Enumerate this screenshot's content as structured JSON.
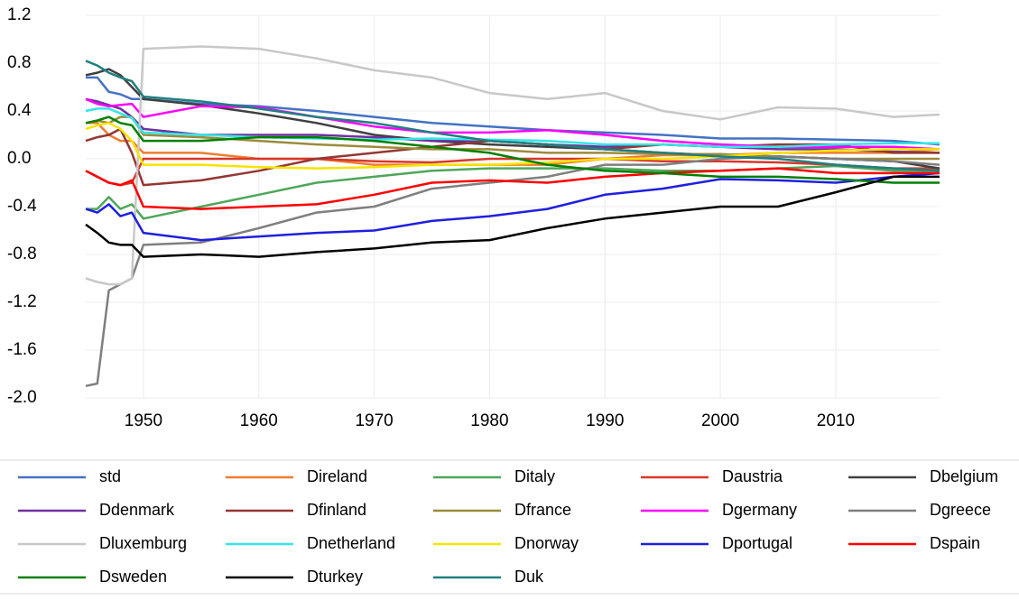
{
  "chart_data": {
    "type": "line",
    "x": [
      1945,
      1946,
      1947,
      1948,
      1949,
      1950,
      1955,
      1960,
      1965,
      1970,
      1975,
      1980,
      1985,
      1990,
      1995,
      2000,
      2005,
      2010,
      2015,
      2019
    ],
    "xlim": [
      1945,
      2019
    ],
    "xticks": [
      1950,
      1960,
      1970,
      1980,
      1990,
      2000,
      2010
    ],
    "ylim": [
      -2,
      1.2
    ],
    "yticks": [
      1.2,
      0.8,
      0.4,
      {
        "value": 0,
        "label": "0.0"
      },
      -0.4,
      -0.8,
      -1.2,
      -1.6,
      {
        "value": -2,
        "label": "-2.0"
      }
    ],
    "grid": true,
    "legend": "bottom",
    "series": [
      {
        "name": "std",
        "color": "#4472c4",
        "values": [
          0.68,
          0.68,
          0.56,
          0.54,
          0.5,
          0.5,
          0.46,
          0.44,
          0.4,
          0.35,
          0.3,
          0.27,
          0.24,
          0.22,
          0.2,
          0.17,
          0.17,
          0.16,
          0.15,
          0.12
        ]
      },
      {
        "name": "Direland",
        "color": "#ed7d31",
        "values": [
          0.3,
          0.3,
          0.2,
          0.15,
          0.15,
          0.05,
          0.05,
          0.0,
          0.0,
          -0.05,
          -0.05,
          -0.05,
          -0.05,
          0.0,
          0.03,
          0.03,
          0.05,
          0.05,
          0.05,
          0.08
        ]
      },
      {
        "name": "Ditaly",
        "color": "#4ea65a",
        "values": [
          -0.42,
          -0.42,
          -0.32,
          -0.42,
          -0.38,
          -0.5,
          -0.4,
          -0.3,
          -0.2,
          -0.15,
          -0.1,
          -0.08,
          -0.08,
          -0.08,
          -0.1,
          -0.1,
          -0.08,
          -0.06,
          -0.1,
          -0.1
        ]
      },
      {
        "name": "Daustria",
        "color": "#d9372b",
        "values": [
          -0.1,
          -0.15,
          -0.2,
          -0.22,
          -0.2,
          0.0,
          0.0,
          0.0,
          0.0,
          -0.02,
          -0.03,
          0.0,
          0.0,
          0.0,
          -0.02,
          -0.02,
          -0.03,
          -0.05,
          -0.08,
          -0.08
        ]
      },
      {
        "name": "Dbelgium",
        "color": "#404040",
        "values": [
          0.7,
          0.72,
          0.75,
          0.7,
          0.6,
          0.5,
          0.45,
          0.38,
          0.3,
          0.2,
          0.15,
          0.12,
          0.1,
          0.08,
          0.05,
          0.03,
          0.02,
          0.0,
          -0.02,
          -0.08
        ]
      },
      {
        "name": "Ddenmark",
        "color": "#7030a0",
        "values": [
          0.5,
          0.48,
          0.45,
          0.42,
          0.35,
          0.25,
          0.2,
          0.2,
          0.2,
          0.18,
          0.15,
          0.15,
          0.12,
          0.1,
          0.12,
          0.1,
          0.08,
          0.08,
          0.06,
          0.05
        ]
      },
      {
        "name": "Dfinland",
        "color": "#943634",
        "values": [
          0.15,
          0.18,
          0.2,
          0.25,
          0.05,
          -0.22,
          -0.18,
          -0.1,
          0.0,
          0.05,
          0.1,
          0.15,
          0.12,
          0.08,
          0.12,
          0.1,
          0.12,
          0.12,
          0.05,
          0.05
        ]
      },
      {
        "name": "Dfrance",
        "color": "#9c8a3b",
        "values": [
          0.3,
          0.32,
          0.3,
          0.35,
          0.35,
          0.2,
          0.18,
          0.15,
          0.12,
          0.1,
          0.08,
          0.08,
          0.05,
          0.05,
          0.04,
          0.04,
          0.02,
          0.0,
          0.0,
          0.0
        ]
      },
      {
        "name": "Dgermany",
        "color": "#ff00ff",
        "values": [
          0.5,
          0.46,
          0.44,
          0.45,
          0.46,
          0.35,
          0.44,
          0.43,
          0.35,
          0.27,
          0.22,
          0.22,
          0.24,
          0.2,
          0.15,
          0.12,
          0.1,
          0.1,
          0.1,
          0.08
        ]
      },
      {
        "name": "Dgreece",
        "color": "#7f7f7f",
        "values": [
          -1.9,
          -1.88,
          -1.1,
          -1.05,
          -1.0,
          -0.72,
          -0.7,
          -0.58,
          -0.45,
          -0.4,
          -0.25,
          -0.2,
          -0.15,
          -0.05,
          -0.05,
          0.0,
          0.02,
          0.0,
          -0.02,
          -0.05
        ]
      },
      {
        "name": "Dluxemburg",
        "color": "#c8c8c8",
        "values": [
          -1.0,
          -1.03,
          -1.05,
          -1.05,
          -1.0,
          0.92,
          0.94,
          0.92,
          0.84,
          0.74,
          0.68,
          0.55,
          0.5,
          0.55,
          0.4,
          0.33,
          0.43,
          0.42,
          0.35,
          0.37
        ]
      },
      {
        "name": "Dnetherland",
        "color": "#33e6e6",
        "values": [
          0.4,
          0.42,
          0.42,
          0.38,
          0.34,
          0.22,
          0.2,
          0.18,
          0.17,
          0.16,
          0.17,
          0.16,
          0.15,
          0.12,
          0.12,
          0.1,
          0.1,
          0.12,
          0.13,
          0.13
        ]
      },
      {
        "name": "Dnorway",
        "color": "#f5e400",
        "values": [
          0.25,
          0.28,
          0.3,
          0.25,
          0.15,
          -0.05,
          -0.05,
          -0.07,
          -0.08,
          -0.07,
          -0.05,
          -0.05,
          -0.03,
          0.0,
          0.0,
          0.02,
          0.05,
          0.07,
          0.08,
          0.08
        ]
      },
      {
        "name": "Dportugal",
        "color": "#1f1fe0",
        "values": [
          -0.42,
          -0.45,
          -0.38,
          -0.48,
          -0.45,
          -0.62,
          -0.68,
          -0.65,
          -0.62,
          -0.6,
          -0.52,
          -0.48,
          -0.42,
          -0.3,
          -0.25,
          -0.17,
          -0.18,
          -0.2,
          -0.15,
          -0.12
        ]
      },
      {
        "name": "Dspain",
        "color": "#ff0000",
        "values": [
          -0.1,
          -0.15,
          -0.2,
          -0.22,
          -0.18,
          -0.4,
          -0.42,
          -0.4,
          -0.38,
          -0.3,
          -0.2,
          -0.18,
          -0.2,
          -0.15,
          -0.12,
          -0.1,
          -0.08,
          -0.12,
          -0.12,
          -0.12
        ]
      },
      {
        "name": "Dsweden",
        "color": "#008000",
        "values": [
          0.3,
          0.32,
          0.35,
          0.3,
          0.28,
          0.15,
          0.15,
          0.18,
          0.18,
          0.15,
          0.1,
          0.05,
          -0.05,
          -0.1,
          -0.12,
          -0.15,
          -0.15,
          -0.17,
          -0.2,
          -0.2
        ]
      },
      {
        "name": "Dturkey",
        "color": "#000000",
        "values": [
          -0.55,
          -0.62,
          -0.7,
          -0.72,
          -0.72,
          -0.82,
          -0.8,
          -0.82,
          -0.78,
          -0.75,
          -0.7,
          -0.68,
          -0.58,
          -0.5,
          -0.45,
          -0.4,
          -0.4,
          -0.28,
          -0.15,
          -0.15
        ]
      },
      {
        "name": "Duk",
        "color": "#1f7f7f",
        "values": [
          0.82,
          0.78,
          0.72,
          0.68,
          0.65,
          0.52,
          0.48,
          0.42,
          0.35,
          0.3,
          0.22,
          0.15,
          0.12,
          0.08,
          0.05,
          0.02,
          0.0,
          -0.05,
          -0.08,
          -0.1
        ]
      }
    ]
  }
}
